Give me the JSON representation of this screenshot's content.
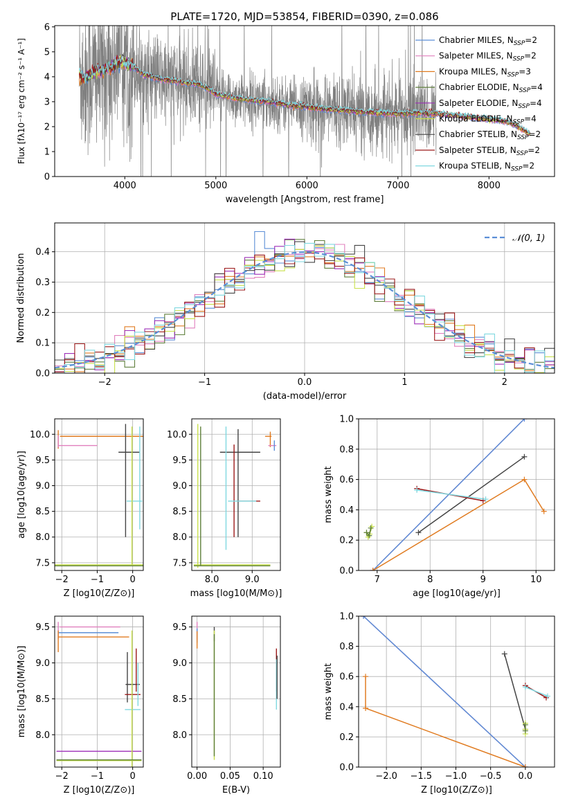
{
  "colors": {
    "chabrier_miles": "#5b8ed6",
    "salpeter_miles": "#e07fbd",
    "kroupa_miles": "#e07b20",
    "chabrier_elodie": "#5f7f3c",
    "salpeter_elodie": "#9d2fb8",
    "kroupa_elodie": "#c8e04a",
    "chabrier_stelib": "#444444",
    "salpeter_stelib": "#9b1818",
    "kroupa_stelib": "#7fd8e0",
    "data_gray": "#808080",
    "normal_dash": "#5b8ed6",
    "grid": "#b0b0b0"
  },
  "chart_data": [
    {
      "id": "spectrum",
      "type": "line",
      "title": "PLATE=1720, MJD=53854, FIBERID=0390, z=0.086",
      "xlabel": "wavelength [Angstrom, rest frame]",
      "ylabel": "Flux [fλ10⁻¹⁷ erg cm⁻² s⁻¹ A⁻¹]",
      "xlim": [
        3230,
        8720
      ],
      "ylim": [
        0,
        6.05
      ],
      "xticks": [
        4000,
        5000,
        6000,
        7000,
        8000
      ],
      "yticks": [
        0,
        1,
        2,
        3,
        4,
        5,
        6
      ],
      "grid": false,
      "legend_position": "upper-right",
      "legend": [
        "Chabrier MILES, NSSP=2",
        "Salpeter MILES, NSSP=2",
        "Kroupa MILES, NSSP=3",
        "Chabrier ELODIE, NSSP=4",
        "Salpeter ELODIE, NSSP=4",
        "Kroupa ELODIE, NSSP=4",
        "Chabrier STELIB, NSSP=2",
        "Salpeter STELIB, NSSP=2",
        "Kroupa STELIB, NSSP=2"
      ],
      "model_continuum": {
        "x": [
          3500,
          3550,
          3600,
          3700,
          3800,
          3850,
          3900,
          3950,
          4000,
          4100,
          4200,
          4400,
          4600,
          4800,
          4900,
          5000,
          5200,
          5400,
          5600,
          5800,
          6000,
          6200,
          6400,
          6600,
          6800,
          7000,
          7200,
          7400,
          7600,
          7800,
          8000,
          8200,
          8300,
          8450
        ],
        "y": [
          4.1,
          3.95,
          4.05,
          4.2,
          4.3,
          4.35,
          4.5,
          4.6,
          4.55,
          4.4,
          4.1,
          3.9,
          3.8,
          3.7,
          3.55,
          3.3,
          3.15,
          3.05,
          3.0,
          2.85,
          2.8,
          2.7,
          2.65,
          2.6,
          2.55,
          2.52,
          2.55,
          2.52,
          2.45,
          2.38,
          2.3,
          2.2,
          2.05,
          1.7
        ]
      },
      "noise_level": "high"
    },
    {
      "id": "residuals",
      "type": "histogram",
      "xlabel": "(data-model)/error",
      "ylabel": "Normed distribution",
      "xlim": [
        -2.5,
        2.5
      ],
      "ylim": [
        0,
        0.495
      ],
      "xticks": [
        -2,
        -1,
        0,
        1,
        2
      ],
      "yticks": [
        0.0,
        0.1,
        0.2,
        0.3,
        0.4
      ],
      "grid": true,
      "legend": [
        "𝒩(0, 1)"
      ],
      "legend_position": "top-right",
      "bin_width": 0.1,
      "reference": {
        "name": "𝒩(0, 1)",
        "type": "gaussian",
        "mean": 0,
        "sigma": 1
      }
    },
    {
      "id": "age_vs_Z",
      "type": "errorbar",
      "xlabel": "Z [log10(Z/Z⊙)]",
      "ylabel": "age  [log10(age/yr)]",
      "xlim": [
        -2.2,
        0.3
      ],
      "ylim": [
        7.35,
        10.3
      ],
      "xticks": [
        -2,
        -1,
        0
      ],
      "yticks": [
        7.5,
        8.0,
        8.5,
        9.0,
        9.5,
        10.0
      ],
      "grid": true,
      "bars": [
        {
          "c": "kroupa_miles",
          "x": -0.6,
          "xe": 1.45,
          "y": 9.96,
          "ye": 0
        },
        {
          "c": "kroupa_miles",
          "x": -2.1,
          "xe": 0,
          "y": 9.9,
          "ye": 0.18
        },
        {
          "c": "salpeter_miles",
          "x": -1.55,
          "xe": 0.55,
          "y": 9.78,
          "ye": 0
        },
        {
          "c": "salpeter_miles",
          "x": -2.1,
          "xe": 0,
          "y": 9.86,
          "ye": 0.12
        },
        {
          "c": "chabrier_stelib",
          "x": -0.1,
          "xe": 0.3,
          "y": 9.65,
          "ye": 0
        },
        {
          "c": "chabrier_stelib",
          "x": -0.2,
          "xe": 0,
          "y": 9.1,
          "ye": 1.1
        },
        {
          "c": "kroupa_stelib",
          "x": 0.05,
          "xe": 0.22,
          "y": 8.7,
          "ye": 0
        },
        {
          "c": "kroupa_stelib",
          "x": 0.2,
          "xe": 0,
          "y": 9.15,
          "ye": 1.0
        },
        {
          "c": "kroupa_elodie",
          "x": -0.95,
          "xe": 1.35,
          "y": 7.46,
          "ye": 0
        },
        {
          "c": "kroupa_elodie",
          "x": -0.02,
          "xe": 0,
          "y": 8.8,
          "ye": 1.35
        },
        {
          "c": "chabrier_elodie",
          "x": -0.95,
          "xe": 1.35,
          "y": 7.44,
          "ye": 0
        }
      ]
    },
    {
      "id": "age_vs_mass",
      "type": "errorbar",
      "xlabel": "mass [log10(M/M⊙)]",
      "ylabel": "",
      "xlim": [
        7.5,
        9.7
      ],
      "ylim": [
        7.35,
        10.3
      ],
      "xticks": [
        8,
        9
      ],
      "yticks": [
        7.5,
        8.0,
        8.5,
        9.0,
        9.5,
        10.0
      ],
      "grid": true,
      "bars": [
        {
          "c": "kroupa_miles",
          "x": 9.4,
          "xe": 0.08,
          "y": 9.96,
          "ye": 0
        },
        {
          "c": "kroupa_miles",
          "x": 9.45,
          "xe": 0,
          "y": 9.9,
          "ye": 0.15
        },
        {
          "c": "salpeter_miles",
          "x": 9.5,
          "xe": 0.1,
          "y": 9.78,
          "ye": 0
        },
        {
          "c": "chabrier_miles",
          "x": 9.55,
          "xe": 0,
          "y": 9.78,
          "ye": 0.1
        },
        {
          "c": "chabrier_stelib",
          "x": 8.7,
          "xe": 0.5,
          "y": 9.65,
          "ye": 0
        },
        {
          "c": "chabrier_stelib",
          "x": 8.65,
          "xe": 0,
          "y": 9.05,
          "ye": 1.05
        },
        {
          "c": "salpeter_stelib",
          "x": 8.55,
          "xe": 0,
          "y": 8.9,
          "ye": 0.9
        },
        {
          "c": "salpeter_stelib",
          "x": 8.9,
          "xe": 0.3,
          "y": 8.7,
          "ye": 0
        },
        {
          "c": "kroupa_stelib",
          "x": 8.75,
          "xe": 0.35,
          "y": 8.7,
          "ye": 0
        },
        {
          "c": "kroupa_stelib",
          "x": 8.35,
          "xe": 0,
          "y": 8.95,
          "ye": 1.2
        },
        {
          "c": "kroupa_elodie",
          "x": 8.5,
          "xe": 0.95,
          "y": 7.46,
          "ye": 0
        },
        {
          "c": "kroupa_elodie",
          "x": 7.65,
          "xe": 0,
          "y": 8.8,
          "ye": 1.4
        },
        {
          "c": "chabrier_elodie",
          "x": 7.72,
          "xe": 0,
          "y": 8.8,
          "ye": 1.35
        },
        {
          "c": "chabrier_elodie",
          "x": 8.5,
          "xe": 0.95,
          "y": 7.44,
          "ye": 0
        }
      ]
    },
    {
      "id": "massweight_vs_age",
      "type": "line",
      "xlabel": "age  [log10(age/yr)]",
      "ylabel": "mass weight",
      "xlim": [
        6.65,
        10.35
      ],
      "ylim": [
        0,
        1
      ],
      "xticks": [
        7,
        8,
        9,
        10
      ],
      "yticks": [
        0.0,
        0.2,
        0.4,
        0.6,
        0.8,
        1.0
      ],
      "grid": true,
      "series": [
        {
          "c": "salpeter_miles",
          "x": [
            6.92,
            9.78
          ],
          "y": [
            0.0,
            1.0
          ]
        },
        {
          "c": "chabrier_miles",
          "x": [
            6.92,
            9.78
          ],
          "y": [
            0.0,
            1.0
          ]
        },
        {
          "c": "kroupa_miles",
          "x": [
            6.92,
            9.78,
            10.15
          ],
          "y": [
            0.0,
            0.6,
            0.39
          ]
        },
        {
          "c": "chabrier_stelib",
          "x": [
            7.78,
            9.78
          ],
          "y": [
            0.25,
            0.75
          ]
        },
        {
          "c": "salpeter_stelib",
          "x": [
            7.75,
            9.0
          ],
          "y": [
            0.54,
            0.46
          ]
        },
        {
          "c": "kroupa_stelib",
          "x": [
            7.75,
            9.05
          ],
          "y": [
            0.53,
            0.47
          ]
        },
        {
          "c": "kroupa_elodie",
          "x": [
            6.8,
            6.83,
            6.86,
            6.9
          ],
          "y": [
            0.25,
            0.22,
            0.24,
            0.29
          ]
        },
        {
          "c": "chabrier_elodie",
          "x": [
            6.8,
            6.85,
            6.88
          ],
          "y": [
            0.25,
            0.23,
            0.28
          ]
        }
      ]
    },
    {
      "id": "mass_vs_Z",
      "type": "errorbar",
      "xlabel": "Z [log10(Z/Z⊙)]",
      "ylabel": "mass [log10(M/M⊙)]",
      "xlim": [
        -2.2,
        0.3
      ],
      "ylim": [
        7.55,
        9.65
      ],
      "xticks": [
        -2,
        -1,
        0
      ],
      "yticks": [
        8.0,
        8.5,
        9.0,
        9.5
      ],
      "grid": true,
      "bars": [
        {
          "c": "salpeter_miles",
          "x": -1.2,
          "xe": 0.85,
          "y": 9.5,
          "ye": 0
        },
        {
          "c": "salpeter_miles",
          "x": -2.1,
          "xe": 0,
          "y": 9.45,
          "ye": 0.12
        },
        {
          "c": "chabrier_miles",
          "x": -1.25,
          "xe": 0.85,
          "y": 9.42,
          "ye": 0
        },
        {
          "c": "kroupa_miles",
          "x": -1.1,
          "xe": 1.0,
          "y": 9.36,
          "ye": 0
        },
        {
          "c": "kroupa_miles",
          "x": -2.1,
          "xe": 0,
          "y": 9.3,
          "ye": 0.15
        },
        {
          "c": "chabrier_stelib",
          "x": 0.0,
          "xe": 0.2,
          "y": 8.7,
          "ye": 0
        },
        {
          "c": "chabrier_stelib",
          "x": -0.15,
          "xe": 0,
          "y": 8.8,
          "ye": 0.35
        },
        {
          "c": "salpeter_stelib",
          "x": 0.0,
          "xe": 0.22,
          "y": 8.56,
          "ye": 0
        },
        {
          "c": "salpeter_stelib",
          "x": 0.1,
          "xe": 0,
          "y": 8.9,
          "ye": 0.3
        },
        {
          "c": "kroupa_stelib",
          "x": 0.0,
          "xe": 0.22,
          "y": 8.35,
          "ye": 0
        },
        {
          "c": "kroupa_stelib",
          "x": 0.15,
          "xe": 0,
          "y": 8.7,
          "ye": 0.3
        },
        {
          "c": "salpeter_elodie",
          "x": -0.95,
          "xe": 1.2,
          "y": 7.77,
          "ye": 0
        },
        {
          "c": "kroupa_elodie",
          "x": -0.95,
          "xe": 1.2,
          "y": 7.64,
          "ye": 0
        },
        {
          "c": "kroupa_elodie",
          "x": -0.02,
          "xe": 0,
          "y": 8.5,
          "ye": 0.95
        },
        {
          "c": "chabrier_elodie",
          "x": -0.95,
          "xe": 1.2,
          "y": 7.65,
          "ye": 0
        }
      ]
    },
    {
      "id": "mass_vs_ebv",
      "type": "errorbar",
      "xlabel": "E(B-V)",
      "ylabel": "",
      "xlim": [
        -0.008,
        0.126
      ],
      "ylim": [
        7.55,
        9.65
      ],
      "xticks": [
        0.0,
        0.05,
        0.1
      ],
      "yticks": [
        8.0,
        8.5,
        9.0,
        9.5
      ],
      "grid": true,
      "bars": [
        {
          "c": "salpeter_miles",
          "x": 0.0,
          "xe": 0,
          "y": 9.45,
          "ye": 0.12
        },
        {
          "c": "chabrier_miles",
          "x": 0.0,
          "xe": 0,
          "y": 9.38,
          "ye": 0.1
        },
        {
          "c": "kroupa_miles",
          "x": 0.0,
          "xe": 0,
          "y": 9.32,
          "ye": 0.12
        },
        {
          "c": "chabrier_stelib",
          "x": 0.026,
          "xe": 0,
          "y": 9.4,
          "ye": 0.1
        },
        {
          "c": "kroupa_elodie",
          "x": 0.026,
          "xe": 0,
          "y": 8.55,
          "ye": 0.9
        },
        {
          "c": "chabrier_elodie",
          "x": 0.026,
          "xe": 0,
          "y": 8.55,
          "ye": 0.85
        },
        {
          "c": "salpeter_stelib",
          "x": 0.12,
          "xe": 0,
          "y": 8.9,
          "ye": 0.3
        },
        {
          "c": "kroupa_stelib",
          "x": 0.12,
          "xe": 0,
          "y": 8.7,
          "ye": 0.35
        },
        {
          "c": "chabrier_stelib",
          "x": 0.121,
          "xe": 0,
          "y": 8.8,
          "ye": 0.3
        }
      ]
    },
    {
      "id": "massweight_vs_Z",
      "type": "line",
      "xlabel": "Z [log10(Z/Z⊙)]",
      "ylabel": "mass weight",
      "xlim": [
        -2.4,
        0.42
      ],
      "ylim": [
        0,
        1
      ],
      "xticks": [
        -2.0,
        -1.5,
        -1.0,
        -0.5,
        0.0
      ],
      "yticks": [
        0.0,
        0.2,
        0.4,
        0.6,
        0.8,
        1.0
      ],
      "grid": true,
      "series": [
        {
          "c": "salpeter_miles",
          "x": [
            -2.33,
            0.0
          ],
          "y": [
            1.0,
            0.0
          ]
        },
        {
          "c": "chabrier_miles",
          "x": [
            -2.33,
            0.0
          ],
          "y": [
            1.0,
            0.0
          ]
        },
        {
          "c": "kroupa_miles",
          "x": [
            -2.3,
            -2.3,
            0.0
          ],
          "y": [
            0.6,
            0.39,
            0.0
          ]
        },
        {
          "c": "chabrier_stelib",
          "x": [
            -0.3,
            0.0
          ],
          "y": [
            0.75,
            0.25
          ]
        },
        {
          "c": "salpeter_stelib",
          "x": [
            0.0,
            0.3
          ],
          "y": [
            0.54,
            0.46
          ]
        },
        {
          "c": "kroupa_stelib",
          "x": [
            0.0,
            0.32
          ],
          "y": [
            0.53,
            0.47
          ]
        },
        {
          "c": "kroupa_elodie",
          "x": [
            0.0,
            0.0,
            0.0
          ],
          "y": [
            0.22,
            0.25,
            0.29
          ]
        },
        {
          "c": "chabrier_elodie",
          "x": [
            0.0,
            0.0
          ],
          "y": [
            0.24,
            0.28
          ]
        }
      ]
    }
  ]
}
